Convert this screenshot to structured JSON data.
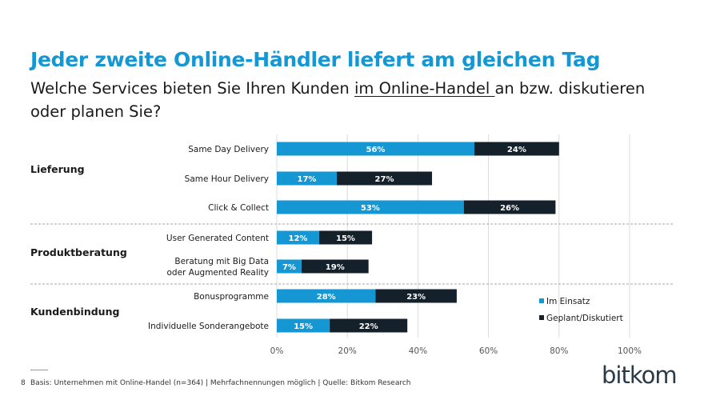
{
  "slide": {
    "title": "Jeder zweite Online-Händler liefert am gleichen Tag",
    "subtitle_before": "Welche Services bieten Sie Ihren Kunden ",
    "subtitle_underlined": "im Online-Handel ",
    "subtitle_after": "an bzw. diskutieren oder planen Sie?",
    "page_number": "8",
    "source": "Basis: Unternehmen mit Online-Handel (n=364) | Mehrfachnennungen möglich | Quelle: Bitkom Research",
    "logo": "bitkom"
  },
  "chart_data": {
    "type": "bar",
    "orientation": "horizontal",
    "stacked": true,
    "xlim": [
      0,
      100
    ],
    "xticks": [
      "0%",
      "20%",
      "40%",
      "60%",
      "80%",
      "100%"
    ],
    "grid": true,
    "legend_position": "right",
    "groups": [
      {
        "name": "Lieferung",
        "categories": [
          "Same Day Delivery",
          "Same Hour Delivery",
          "Click & Collect"
        ]
      },
      {
        "name": "Produktberatung",
        "categories": [
          "User Generated Content",
          "Beratung mit Big Data oder Augmented Reality"
        ]
      },
      {
        "name": "Kundenbindung",
        "categories": [
          "Bonusprogramme",
          "Individuelle Sonderangebote"
        ]
      }
    ],
    "categories": [
      "Same Day Delivery",
      "Same Hour Delivery",
      "Click & Collect",
      "User Generated Content",
      "Beratung mit Big Data oder Augmented Reality",
      "Bonusprogramme",
      "Individuelle Sonderangebote"
    ],
    "category_lines": [
      [
        "Same Day Delivery"
      ],
      [
        "Same Hour Delivery"
      ],
      [
        "Click & Collect"
      ],
      [
        "User Generated Content"
      ],
      [
        "Beratung mit Big Data",
        "oder Augmented Reality"
      ],
      [
        "Bonusprogramme"
      ],
      [
        "Individuelle Sonderangebote"
      ]
    ],
    "series": [
      {
        "name": "Im Einsatz",
        "color": "#1597d4",
        "values": [
          56,
          17,
          53,
          12,
          7,
          28,
          15
        ]
      },
      {
        "name": "Geplant/Diskutiert",
        "color": "#14212b",
        "values": [
          24,
          27,
          26,
          15,
          19,
          23,
          22
        ]
      }
    ]
  }
}
